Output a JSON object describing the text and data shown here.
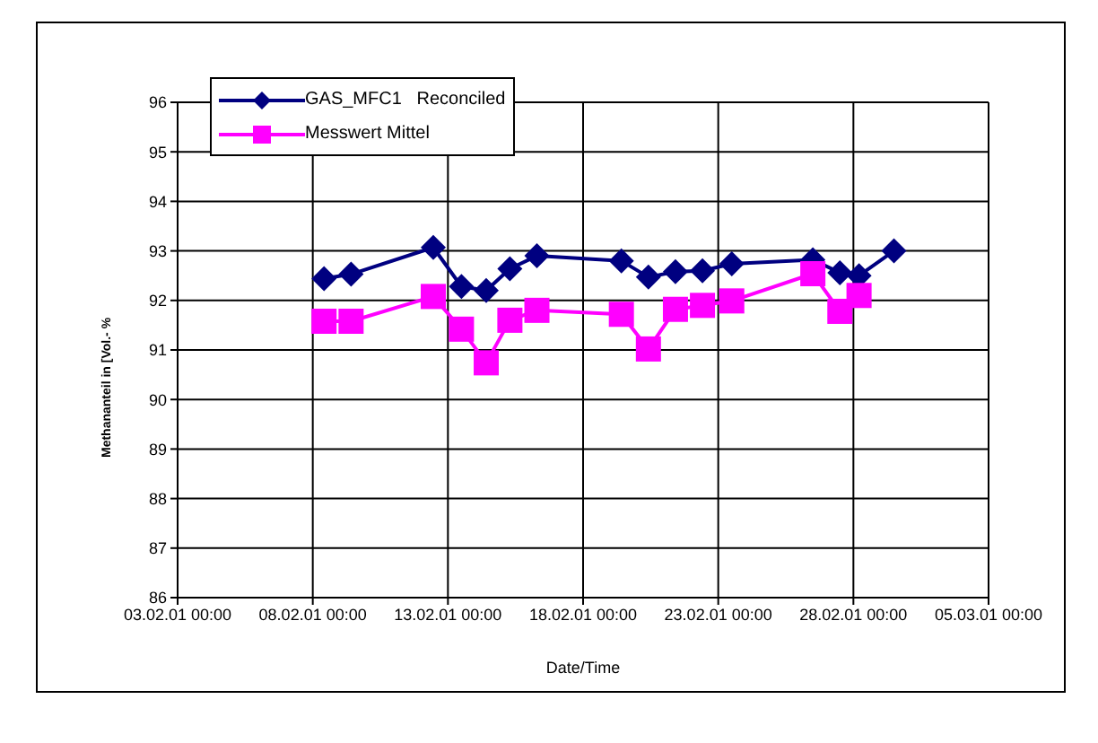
{
  "chart_data": {
    "type": "line",
    "xlabel": "Date/Time",
    "ylabel": "Methananteil in [Vol.- %",
    "x": [
      "--02-08T10:00",
      "--02-09T10:00",
      "--02-12T11:00",
      "--02-13T12:00",
      "--02-14T10:00",
      "--02-15T07:00",
      "--02-16T07:00",
      "--02-19T10:00",
      "--02-20T10:00",
      "--02-21T10:00",
      "--02-22T10:00",
      "--02-23T12:00",
      "--02-26T12:00",
      "--02-27T12:00",
      "--02-28T05:00",
      "--03-01T12:00"
    ],
    "series": [
      {
        "name": "GAS_MFC1   Reconciled",
        "color": "#000080",
        "marker": "diamond",
        "values": [
          92.44,
          92.53,
          93.07,
          92.28,
          92.2,
          92.64,
          92.9,
          92.8,
          92.47,
          92.58,
          92.6,
          92.74,
          92.82,
          92.56,
          92.5,
          93.0
        ]
      },
      {
        "name": "Messwert Mittel",
        "color": "#ff00ff",
        "marker": "square",
        "values": [
          91.58,
          91.58,
          92.08,
          91.42,
          90.74,
          91.6,
          91.8,
          91.72,
          91.02,
          91.82,
          91.9,
          91.99,
          92.54,
          91.78,
          92.1,
          null
        ]
      }
    ],
    "xlim": [
      "--02-03",
      "--03-05"
    ],
    "xticks": [
      {
        "value": "--02-03",
        "label": "03.02.01 00:00"
      },
      {
        "value": "--02-08",
        "label": "08.02.01 00:00"
      },
      {
        "value": "--02-13",
        "label": "13.02.01 00:00"
      },
      {
        "value": "--02-18",
        "label": "18.02.01 00:00"
      },
      {
        "value": "--02-23",
        "label": "23.02.01 00:00"
      },
      {
        "value": "--02-28",
        "label": "28.02.01 00:00"
      },
      {
        "value": "--03-05",
        "label": "05.03.01 00:00"
      }
    ],
    "ylim": [
      86,
      96
    ],
    "yticks": [
      86,
      87,
      88,
      89,
      90,
      91,
      92,
      93,
      94,
      95,
      96
    ],
    "grid": true,
    "legend": "top left",
    "line_style": "solid"
  }
}
